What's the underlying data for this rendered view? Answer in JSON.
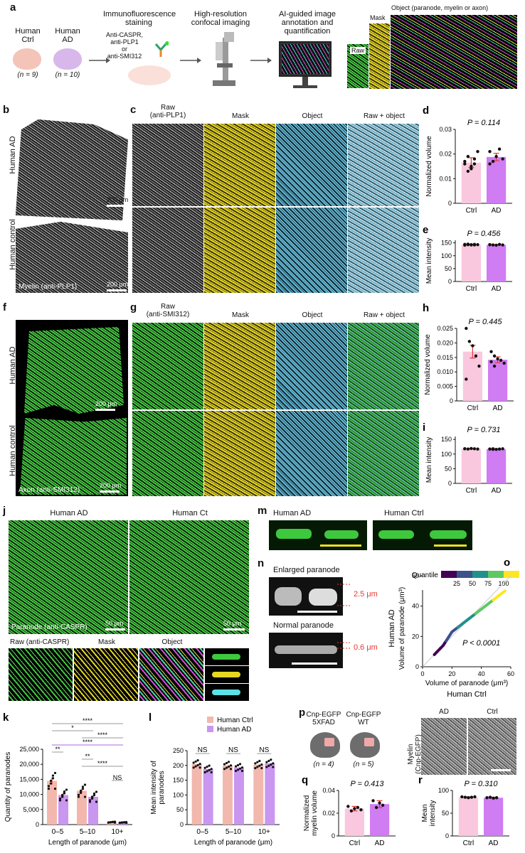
{
  "panel_a": {
    "label": "a",
    "human_ctrl": "Human\nCtrl",
    "human_ad": "Human\nAD",
    "n_ctrl": "(n = 9)",
    "n_ad": "(n = 10)",
    "step1_title": "Immunofluorescence\nstaining",
    "step1_antibodies": "Anti-CASPR,\nanti-PLP1\nor\nanti-SMI312",
    "step2_title": "High-resolution\nconfocal imaging",
    "step3_title": "AI-guided image\nannotation and\nquantification",
    "stack_raw": "Raw",
    "stack_mask": "Mask",
    "stack_object": "Object (paranode, myelin or axon)"
  },
  "panel_b": {
    "label": "b",
    "row1": "Human AD",
    "row2": "Human control",
    "scale1": "200 μm",
    "scale2": "200 μm",
    "caption": "Myelin (anti-PLP1)"
  },
  "panel_c": {
    "label": "c",
    "col1": "Raw\n(anti-PLP1)",
    "col2": "Mask",
    "col3": "Object",
    "col4": "Raw + object"
  },
  "panel_f": {
    "label": "f",
    "row1": "Human AD",
    "row2": "Human control",
    "scale1": "200 μm",
    "scale2": "200 μm",
    "caption": "Axon (anti-SMI312)"
  },
  "panel_g": {
    "label": "g",
    "col1": "Raw\n(anti-SMI312)",
    "col2": "Mask",
    "col3": "Object",
    "col4": "Raw + object"
  },
  "panel_j": {
    "label": "j",
    "left_title": "Human AD",
    "right_title": "Human Ct",
    "scale1": "50 μm",
    "scale2": "50 μm",
    "caption": "Paranode (anti-CASPR)",
    "sub1": "Raw (anti-CASPR)",
    "sub2": "Mask",
    "sub3": "Object"
  },
  "panel_m": {
    "label": "m",
    "left": "Human AD",
    "right": "Human Ctrl"
  },
  "panel_n": {
    "label": "n",
    "top": "Enlarged paranode",
    "top_meas": "2.5 μm",
    "bottom": "Normal paranode",
    "bottom_meas": "0.6 μm"
  },
  "panel_p": {
    "label": "p",
    "mouse1": "Cnp-EGFP\n5XFAD",
    "mouse2": "Cnp-EGFP\nWT",
    "n1": "(n = 4)",
    "n2": "(n = 5)",
    "img_ad": "AD",
    "img_ctrl": "Ctrl",
    "ylabel": "Myelin\n(Cnp-EGFP)"
  },
  "colors": {
    "ctrl": "#f9c8de",
    "ad": "#d07cf2",
    "ctrl_bar_k": "#f2b8ad",
    "ad_bar_k": "#c996f0",
    "err": "#e53935"
  },
  "chart_data": [
    {
      "id": "d",
      "label": "d",
      "type": "bar",
      "categories": [
        "Ctrl",
        "AD"
      ],
      "values": [
        0.0165,
        0.0188
      ],
      "errors": [
        0.002,
        0.0015
      ],
      "ylabel": "Normalized volume",
      "ylim": [
        0,
        0.03
      ],
      "yticks": [
        0,
        0.01,
        0.02,
        0.03
      ],
      "ytick_labels": [
        "0",
        "0.01",
        "0.02",
        "0.03"
      ],
      "pvalue": "P = 0.114",
      "points": [
        [
          0.016,
          0.019,
          0.014,
          0.018,
          0.021,
          0.017,
          0.013,
          0.015,
          0.016
        ],
        [
          0.021,
          0.017,
          0.019,
          0.022,
          0.018,
          0.016
        ]
      ]
    },
    {
      "id": "e",
      "label": "e",
      "type": "bar",
      "categories": [
        "Ctrl",
        "AD"
      ],
      "values": [
        143,
        142
      ],
      "errors": [
        1,
        1
      ],
      "ylabel": "Mean intensity",
      "ylim": [
        0,
        160
      ],
      "yticks": [
        0,
        50,
        100,
        150
      ],
      "ytick_labels": [
        "0",
        "50",
        "100",
        "150"
      ],
      "pvalue": "P = 0.456",
      "points": [
        [
          144,
          143,
          142,
          144,
          143,
          141,
          145,
          143,
          142
        ],
        [
          143,
          142,
          141,
          144,
          142,
          143
        ]
      ]
    },
    {
      "id": "h",
      "label": "h",
      "type": "bar",
      "categories": [
        "Ctrl",
        "AD"
      ],
      "values": [
        0.017,
        0.0142
      ],
      "errors": [
        0.0022,
        0.001
      ],
      "ylabel": "Normalized volume",
      "ylim": [
        0,
        0.025
      ],
      "yticks": [
        0,
        0.005,
        0.01,
        0.015,
        0.02,
        0.025
      ],
      "ytick_labels": [
        "0",
        "0.005",
        "0.010",
        "0.015",
        "0.020",
        "0.025"
      ],
      "pvalue": "P = 0.445",
      "points": [
        [
          0.025,
          0.0205,
          0.019,
          0.0155,
          0.012,
          0.0075
        ],
        [
          0.017,
          0.0155,
          0.0145,
          0.014,
          0.013,
          0.0135,
          0.012
        ]
      ]
    },
    {
      "id": "i",
      "label": "i",
      "type": "bar",
      "categories": [
        "Ctrl",
        "AD"
      ],
      "values": [
        118,
        117
      ],
      "errors": [
        1,
        1
      ],
      "ylabel": "Mean intensity",
      "ylim": [
        0,
        160
      ],
      "yticks": [
        0,
        50,
        100,
        150
      ],
      "ytick_labels": [
        "0",
        "50",
        "100",
        "150"
      ],
      "pvalue": "P = 0.731",
      "points": [
        [
          118,
          117,
          119,
          118,
          117,
          118
        ],
        [
          117,
          118,
          116,
          117,
          118,
          117,
          116
        ]
      ]
    },
    {
      "id": "k",
      "label": "k",
      "type": "bar",
      "categories": [
        "0–5",
        "5–10",
        "10+"
      ],
      "series": [
        {
          "name": "Human Ctrl",
          "values": [
            14500,
            11200,
            800
          ],
          "errors": [
            1200,
            700,
            150
          ]
        },
        {
          "name": "Human AD",
          "values": [
            9800,
            9200,
            700
          ],
          "errors": [
            900,
            600,
            120
          ]
        }
      ],
      "ylabel": "Quantity of paranodes",
      "xlabel": "Length of paranode (μm)",
      "ylim": [
        0,
        25000
      ],
      "yticks": [
        0,
        5000,
        10000,
        15000,
        20000,
        25000
      ],
      "ytick_labels": [
        "0",
        "5,000",
        "10,000",
        "15,000",
        "20,000",
        "25,000"
      ],
      "significance": [
        {
          "text": "****",
          "from": 0,
          "to": 2
        },
        {
          "text": "*",
          "from": 0,
          "to": 1
        },
        {
          "text": "****",
          "from": 1,
          "to": 2
        },
        {
          "text": "****",
          "from": 0,
          "to": 2
        },
        {
          "text": "**",
          "from": 0,
          "to": 0
        },
        {
          "text": "**",
          "from": 1,
          "to": 1
        },
        {
          "text": "****",
          "from": 1,
          "to": 2
        },
        {
          "text": "NS",
          "from": 2,
          "to": 2
        }
      ]
    },
    {
      "id": "l",
      "label": "l",
      "type": "bar",
      "categories": [
        "0–5",
        "5–10",
        "10+"
      ],
      "series": [
        {
          "name": "Human Ctrl",
          "values": [
            205,
            200,
            203
          ]
        },
        {
          "name": "Human AD",
          "values": [
            188,
            193,
            207
          ]
        }
      ],
      "ylabel": "Mean intensity of\nparanodes",
      "xlabel": "Length of paranode (μm)",
      "ylim": [
        0,
        250
      ],
      "yticks": [
        0,
        50,
        100,
        150,
        200,
        250
      ],
      "ytick_labels": [
        "0",
        "50",
        "100",
        "150",
        "200",
        "250"
      ],
      "significance": [
        "NS",
        "NS",
        "NS"
      ],
      "legend": [
        "Human Ctrl",
        "Human AD"
      ]
    },
    {
      "id": "o",
      "label": "o",
      "type": "scatter",
      "xlabel": "Volume of paranode (μm³)",
      "ylabel": "Volume of paranode (μm³)",
      "xtitle": "Human Ctrl",
      "ytitle": "Human AD",
      "xlim": [
        0,
        60
      ],
      "ylim": [
        0,
        60
      ],
      "xticks": [
        0,
        20,
        40,
        60
      ],
      "yticks": [
        0,
        20,
        40,
        60
      ],
      "pvalue": "P < 0.0001",
      "colorbar_title": "Quantile",
      "colorbar_ticks": [
        "25",
        "50",
        "75",
        "100"
      ],
      "x": [
        8,
        10,
        12,
        14,
        16,
        18,
        20,
        24,
        28,
        32,
        36,
        40,
        44,
        48,
        52,
        56
      ],
      "y": [
        8,
        10,
        12,
        14,
        17,
        20,
        23,
        26,
        29,
        32,
        35,
        38,
        41,
        44,
        47,
        50
      ]
    },
    {
      "id": "q",
      "label": "q",
      "type": "bar",
      "categories": [
        "Ctrl",
        "AD"
      ],
      "values": [
        0.024,
        0.028
      ],
      "errors": [
        0.002,
        0.003
      ],
      "ylabel": "Normalized\nmyelin volume",
      "ylim": [
        0,
        0.04
      ],
      "yticks": [
        0,
        0.02,
        0.04
      ],
      "ytick_labels": [
        "0",
        "0.02",
        "0.04"
      ],
      "pvalue": "P = 0.413",
      "points": [
        [
          0.026,
          0.022,
          0.024,
          0.025,
          0.023
        ],
        [
          0.031,
          0.025,
          0.029,
          0.027
        ]
      ]
    },
    {
      "id": "r",
      "label": "r",
      "type": "bar",
      "categories": [
        "Ctrl",
        "AD"
      ],
      "values": [
        85,
        84
      ],
      "errors": [
        1,
        1
      ],
      "ylabel": "Mean\nintensity",
      "ylim": [
        0,
        100
      ],
      "yticks": [
        0,
        50,
        100
      ],
      "ytick_labels": [
        "0",
        "50",
        "100"
      ],
      "pvalue": "P = 0.310",
      "points": [
        [
          86,
          85,
          84,
          85,
          86
        ],
        [
          84,
          85,
          83,
          84
        ]
      ]
    }
  ]
}
